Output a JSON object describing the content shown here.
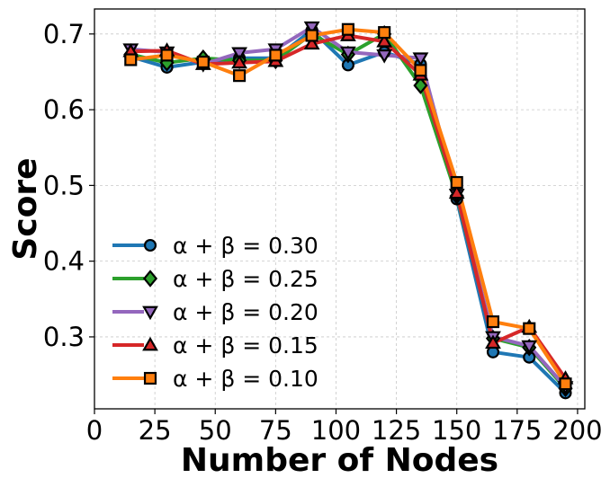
{
  "chart_data": {
    "type": "line",
    "title": "",
    "xlabel": "Number of Nodes",
    "ylabel": "Score",
    "xlim": [
      0,
      203
    ],
    "ylim": [
      0.205,
      0.733
    ],
    "x_ticks": [
      0,
      25,
      50,
      75,
      100,
      125,
      150,
      175,
      200
    ],
    "x_tick_labels": [
      "0",
      "25",
      "50",
      "75",
      "100",
      "125",
      "150",
      "175",
      "200"
    ],
    "y_ticks": [
      0.3,
      0.4,
      0.5,
      0.6,
      0.7
    ],
    "y_tick_labels": [
      "0.3",
      "0.4",
      "0.5",
      "0.6",
      "0.7"
    ],
    "grid": true,
    "legend_position": "lower-left",
    "x": [
      15,
      30,
      45,
      60,
      75,
      90,
      105,
      120,
      135,
      150,
      165,
      180,
      195
    ],
    "series": [
      {
        "name": "α + β = 0.30",
        "color": "#1f77b4",
        "marker": "circle",
        "values": [
          0.67,
          0.656,
          0.663,
          0.668,
          0.668,
          0.705,
          0.659,
          0.676,
          0.66,
          0.482,
          0.28,
          0.273,
          0.226
        ]
      },
      {
        "name": "α + β = 0.25",
        "color": "#2ca02c",
        "marker": "diamond",
        "values": [
          0.673,
          0.662,
          0.668,
          0.665,
          0.665,
          0.7,
          0.673,
          0.7,
          0.632,
          0.486,
          0.298,
          0.286,
          0.232
        ]
      },
      {
        "name": "α + β = 0.20",
        "color": "#9467bd",
        "marker": "triangle-down",
        "values": [
          0.68,
          0.676,
          0.66,
          0.675,
          0.68,
          0.709,
          0.676,
          0.672,
          0.668,
          0.488,
          0.3,
          0.288,
          0.234
        ]
      },
      {
        "name": "α + β = 0.15",
        "color": "#d62728",
        "marker": "triangle-up",
        "values": [
          0.677,
          0.678,
          0.66,
          0.662,
          0.664,
          0.687,
          0.698,
          0.69,
          0.646,
          0.49,
          0.292,
          0.313,
          0.245
        ]
      },
      {
        "name": "α + β = 0.10",
        "color": "#ff7f0e",
        "marker": "square",
        "values": [
          0.666,
          0.672,
          0.663,
          0.645,
          0.672,
          0.698,
          0.706,
          0.702,
          0.652,
          0.504,
          0.32,
          0.311,
          0.238
        ]
      }
    ]
  }
}
